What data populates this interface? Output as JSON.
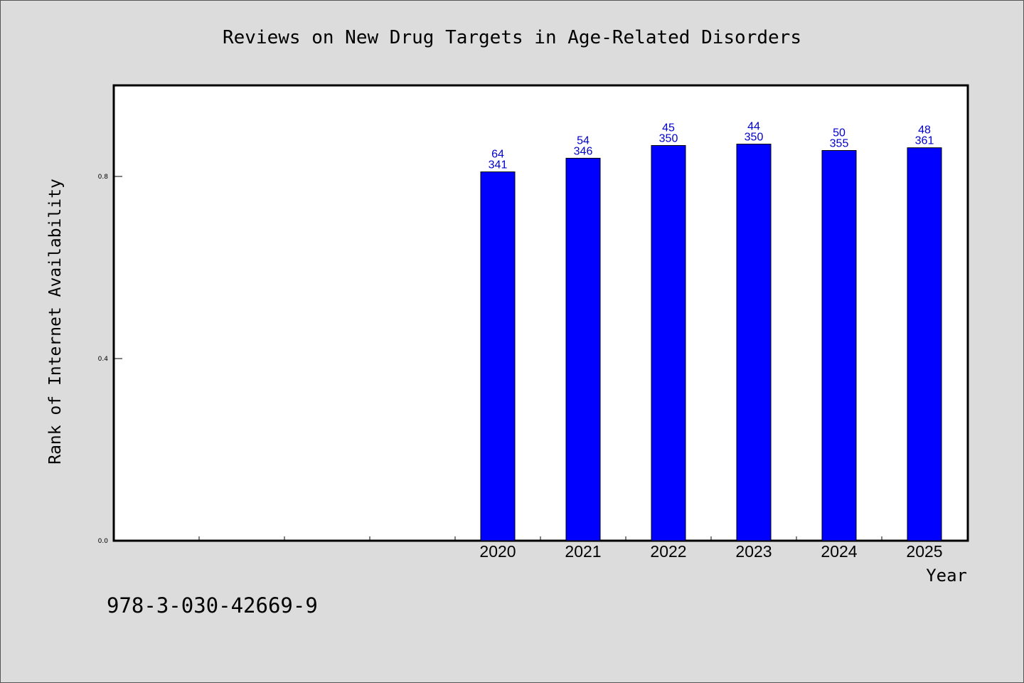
{
  "chart_data": {
    "type": "bar",
    "title": "Reviews on New Drug Targets in Age-Related Disorders",
    "xlabel": "Year",
    "ylabel": "Rank of Internet Availability",
    "categories": [
      "2020",
      "2021",
      "2022",
      "2023",
      "2024",
      "2025"
    ],
    "values": [
      0.81,
      0.84,
      0.868,
      0.871,
      0.857,
      0.863
    ],
    "bar_labels_top": [
      "64",
      "54",
      "45",
      "44",
      "50",
      "48"
    ],
    "bar_labels_bottom": [
      "341",
      "346",
      "350",
      "350",
      "355",
      "361"
    ],
    "yticks": [
      "0.0",
      "0.4",
      "0.8"
    ],
    "ylim": [
      0,
      1.0
    ],
    "grid": false,
    "legend": "none",
    "colors": {
      "bar": "#0000ff",
      "bar_label": "#0000cc",
      "background": "#dcdcdc",
      "plot_background": "#ffffff"
    }
  },
  "footer": {
    "isbn": "978-3-030-42669-9"
  }
}
